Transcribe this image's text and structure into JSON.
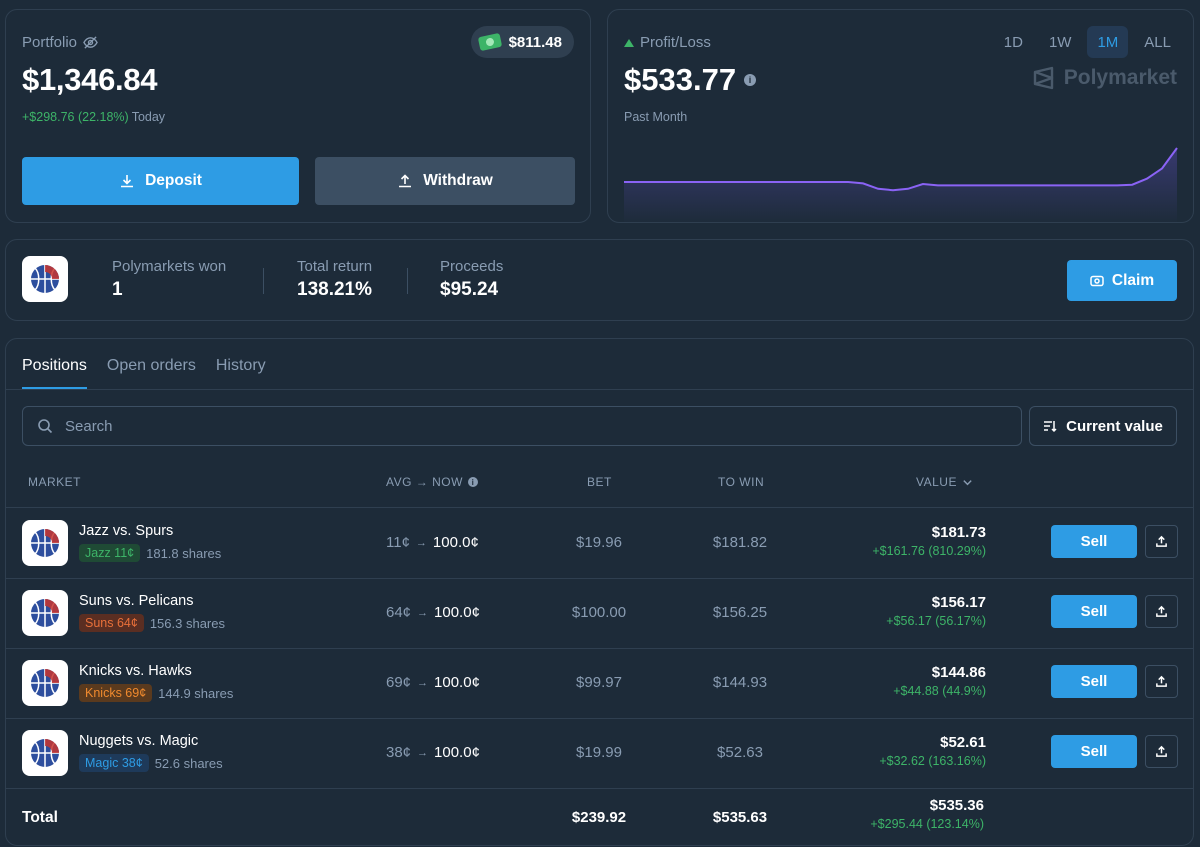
{
  "portfolio": {
    "label": "Portfolio",
    "value": "$1,346.84",
    "change": "+$298.76 (22.18%)",
    "change_period": "Today",
    "cash": "$811.48",
    "deposit_label": "Deposit",
    "withdraw_label": "Withdraw"
  },
  "pnl": {
    "label": "Profit/Loss",
    "value": "$533.77",
    "period": "Past Month",
    "ranges": [
      "1D",
      "1W",
      "1M",
      "ALL"
    ],
    "active_range": "1M",
    "brand": "Polymarket",
    "line_color": "#8a63f5",
    "series": [
      0.5,
      0.5,
      0.5,
      0.5,
      0.5,
      0.5,
      0.5,
      0.5,
      0.5,
      0.5,
      0.5,
      0.5,
      0.5,
      0.5,
      0.5,
      0.5,
      0.48,
      0.4,
      0.38,
      0.4,
      0.47,
      0.45,
      0.45,
      0.45,
      0.45,
      0.45,
      0.45,
      0.45,
      0.45,
      0.45,
      0.45,
      0.45,
      0.45,
      0.45,
      0.46,
      0.55,
      0.7,
      1.0
    ]
  },
  "stats": {
    "won_label": "Polymarkets won",
    "won_value": "1",
    "return_label": "Total return",
    "return_value": "138.21%",
    "proceeds_label": "Proceeds",
    "proceeds_value": "$95.24",
    "claim_label": "Claim"
  },
  "positions": {
    "tabs": [
      "Positions",
      "Open orders",
      "History"
    ],
    "search_placeholder": "Search",
    "sort_label": "Current value",
    "headers": {
      "market": "MARKET",
      "avg_now": "AVG → NOW",
      "bet": "BET",
      "to_win": "TO WIN",
      "value": "VALUE"
    },
    "sell_label": "Sell",
    "rows": [
      {
        "title": "Jazz vs. Spurs",
        "outcome": "Jazz 11¢",
        "badge_bg": "#1f4a35",
        "badge_fg": "#3db468",
        "shares": "181.8 shares",
        "avg": "11¢",
        "now": "100.0¢",
        "bet": "$19.96",
        "to_win": "$181.82",
        "value": "$181.73",
        "change": "+$161.76 (810.29%)"
      },
      {
        "title": "Suns vs. Pelicans",
        "outcome": "Suns 64¢",
        "badge_bg": "#5a2e22",
        "badge_fg": "#e8703a",
        "shares": "156.3 shares",
        "avg": "64¢",
        "now": "100.0¢",
        "bet": "$100.00",
        "to_win": "$156.25",
        "value": "$156.17",
        "change": "+$56.17 (56.17%)"
      },
      {
        "title": "Knicks vs. Hawks",
        "outcome": "Knicks 69¢",
        "badge_bg": "#5a3a1e",
        "badge_fg": "#f08a2e",
        "shares": "144.9 shares",
        "avg": "69¢",
        "now": "100.0¢",
        "bet": "$99.97",
        "to_win": "$144.93",
        "value": "$144.86",
        "change": "+$44.88 (44.9%)"
      },
      {
        "title": "Nuggets vs. Magic",
        "outcome": "Magic 38¢",
        "badge_bg": "#1e3a5a",
        "badge_fg": "#2e9ce4",
        "shares": "52.6 shares",
        "avg": "38¢",
        "now": "100.0¢",
        "bet": "$19.99",
        "to_win": "$52.63",
        "value": "$52.61",
        "change": "+$32.62 (163.16%)"
      }
    ],
    "total": {
      "label": "Total",
      "bet": "$239.92",
      "to_win": "$535.63",
      "value": "$535.36",
      "change": "+$295.44 (123.14%)"
    }
  },
  "colors": {
    "accent": "#2e9ce4",
    "positive": "#3db468",
    "muted": "#899cb2",
    "background": "#1d2b39"
  }
}
